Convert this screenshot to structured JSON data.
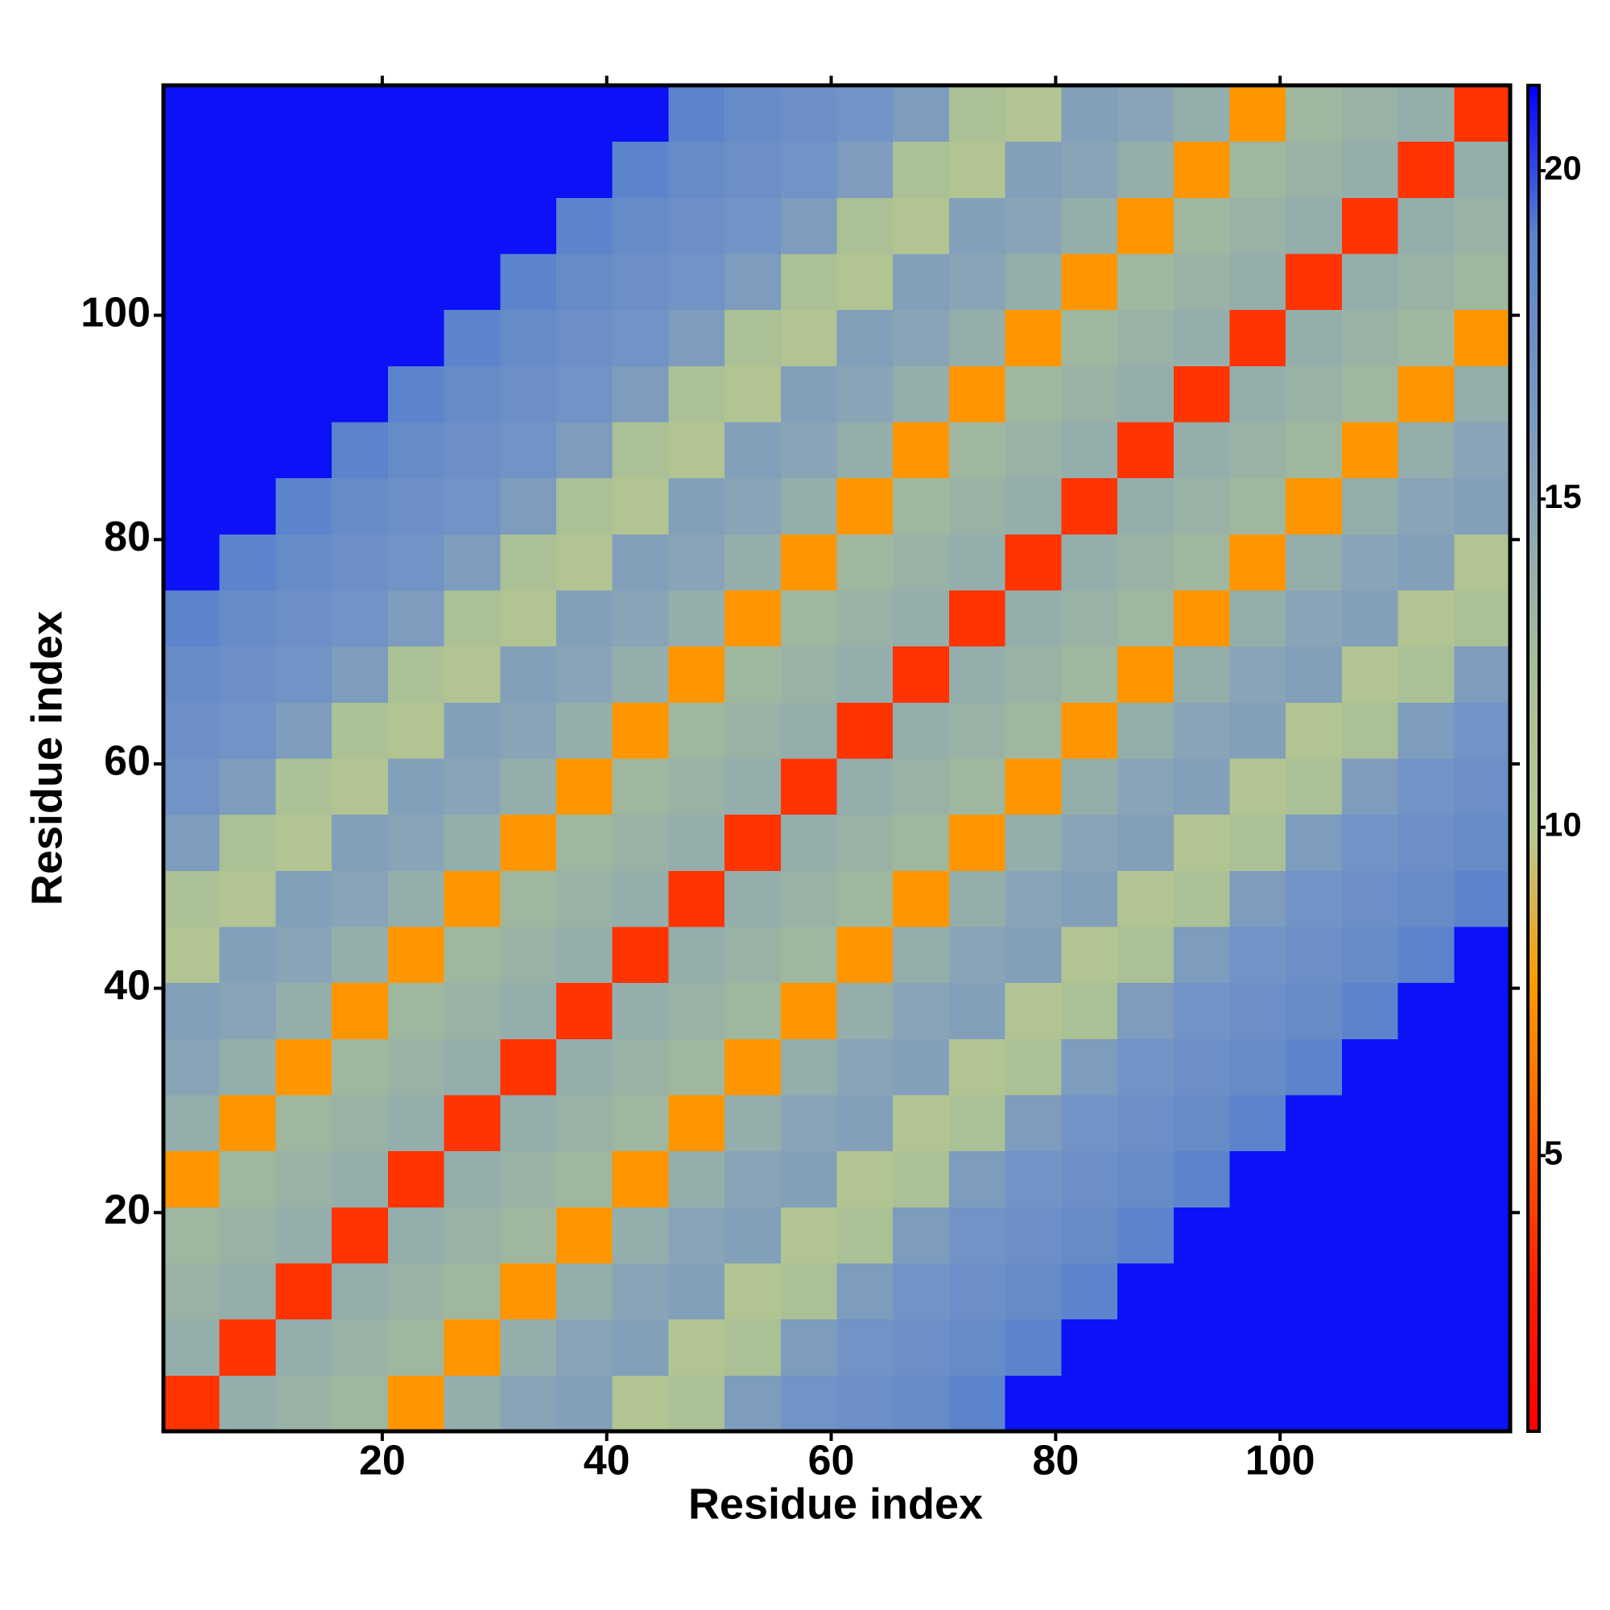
{
  "chart_data": {
    "type": "heatmap",
    "xlabel": "Residue index",
    "ylabel": "Residue index",
    "xlim": [
      0.5,
      120.5
    ],
    "ylim": [
      0.5,
      120.5
    ],
    "xticks": [
      20,
      40,
      60,
      80,
      100
    ],
    "yticks": [
      20,
      40,
      60,
      80,
      100
    ],
    "xbins": [
      0.5,
      5.5,
      10.5,
      15.5,
      20.5,
      25.5,
      30.5,
      35.5,
      40.5,
      45.5,
      50.5,
      55.5,
      60.5,
      65.5,
      70.5,
      75.5,
      80.5,
      85.5,
      90.5,
      95.5,
      100.5,
      105.5,
      110.5,
      115.5,
      120.5
    ],
    "ybins": [
      0.5,
      5.5,
      10.5,
      15.5,
      20.5,
      25.5,
      30.5,
      35.5,
      40.5,
      45.5,
      50.5,
      55.5,
      60.5,
      65.5,
      70.5,
      75.5,
      80.5,
      85.5,
      90.5,
      95.5,
      100.5,
      105.5,
      110.5,
      115.5,
      120.5
    ],
    "values": [
      [
        3.8,
        14,
        13.5,
        13,
        7.5,
        14,
        15,
        15.5,
        11,
        12,
        16,
        17,
        17.5,
        18,
        19,
        21,
        21,
        21,
        21,
        21,
        21,
        21,
        21,
        21
      ],
      [
        14,
        3.8,
        14,
        13.5,
        13,
        7.5,
        14,
        15,
        15.5,
        11,
        12,
        16,
        17,
        17.5,
        18,
        19,
        21,
        21,
        21,
        21,
        21,
        21,
        21,
        21
      ],
      [
        13.5,
        14,
        3.8,
        14,
        13.5,
        13,
        7.5,
        14,
        15,
        15.5,
        11,
        12,
        16,
        17,
        17.5,
        18,
        19,
        21,
        21,
        21,
        21,
        21,
        21,
        21
      ],
      [
        13,
        13.5,
        14,
        3.8,
        14,
        13.5,
        13,
        7.5,
        14,
        15,
        15.5,
        11,
        12,
        16,
        17,
        17.5,
        18,
        19,
        21,
        21,
        21,
        21,
        21,
        21
      ],
      [
        7.5,
        13,
        13.5,
        14,
        3.8,
        14,
        13.5,
        13,
        7.5,
        14,
        15,
        15.5,
        11,
        12,
        16,
        17,
        17.5,
        18,
        19,
        21,
        21,
        21,
        21,
        21
      ],
      [
        14,
        7.5,
        13,
        13.5,
        14,
        3.8,
        14,
        13.5,
        13,
        7.5,
        14,
        15,
        15.5,
        11,
        12,
        16,
        17,
        17.5,
        18,
        19,
        21,
        21,
        21,
        21
      ],
      [
        15,
        14,
        7.5,
        13,
        13.5,
        14,
        3.8,
        14,
        13.5,
        13,
        7.5,
        14,
        15,
        15.5,
        11,
        12,
        16,
        17,
        17.5,
        18,
        19,
        21,
        21,
        21
      ],
      [
        15.5,
        15,
        14,
        7.5,
        13,
        13.5,
        14,
        3.8,
        14,
        13.5,
        13,
        7.5,
        14,
        15,
        15.5,
        11,
        12,
        16,
        17,
        17.5,
        18,
        19,
        21,
        21
      ],
      [
        11,
        15.5,
        15,
        14,
        7.5,
        13,
        13.5,
        14,
        3.8,
        14,
        13.5,
        13,
        7.5,
        14,
        15,
        15.5,
        11,
        12,
        16,
        17,
        17.5,
        18,
        19,
        21
      ],
      [
        12,
        11,
        15.5,
        15,
        14,
        7.5,
        13,
        13.5,
        14,
        3.8,
        14,
        13.5,
        13,
        7.5,
        14,
        15,
        15.5,
        11,
        12,
        16,
        17,
        17.5,
        18,
        19
      ],
      [
        16,
        12,
        11,
        15.5,
        15,
        14,
        7.5,
        13,
        13.5,
        14,
        3.8,
        14,
        13.5,
        13,
        7.5,
        14,
        15,
        15.5,
        11,
        12,
        16,
        17,
        17.5,
        18
      ],
      [
        17,
        16,
        12,
        11,
        15.5,
        15,
        14,
        7.5,
        13,
        13.5,
        14,
        3.8,
        14,
        13.5,
        13,
        7.5,
        14,
        15,
        15.5,
        11,
        12,
        16,
        17,
        17.5
      ],
      [
        17.5,
        17,
        16,
        12,
        11,
        15.5,
        15,
        14,
        7.5,
        13,
        13.5,
        14,
        3.8,
        14,
        13.5,
        13,
        7.5,
        14,
        15,
        15.5,
        11,
        12,
        16,
        17
      ],
      [
        18,
        17.5,
        17,
        16,
        12,
        11,
        15.5,
        15,
        14,
        7.5,
        13,
        13.5,
        14,
        3.8,
        14,
        13.5,
        13,
        7.5,
        14,
        15,
        15.5,
        11,
        12,
        16
      ],
      [
        19,
        18,
        17.5,
        17,
        16,
        12,
        11,
        15.5,
        15,
        14,
        7.5,
        13,
        13.5,
        14,
        3.8,
        14,
        13.5,
        13,
        7.5,
        14,
        15,
        15.5,
        11,
        12
      ],
      [
        21,
        19,
        18,
        17.5,
        17,
        16,
        12,
        11,
        15.5,
        15,
        14,
        7.5,
        13,
        13.5,
        14,
        3.8,
        14,
        13.5,
        13,
        7.5,
        14,
        15,
        15.5,
        11
      ],
      [
        21,
        21,
        19,
        18,
        17.5,
        17,
        16,
        12,
        11,
        15.5,
        15,
        14,
        7.5,
        13,
        13.5,
        14,
        3.8,
        14,
        13.5,
        13,
        7.5,
        14,
        15,
        15.5
      ],
      [
        21,
        21,
        21,
        19,
        18,
        17.5,
        17,
        16,
        12,
        11,
        15.5,
        15,
        14,
        7.5,
        13,
        13.5,
        14,
        3.8,
        14,
        13.5,
        13,
        7.5,
        14,
        15
      ],
      [
        21,
        21,
        21,
        21,
        19,
        18,
        17.5,
        17,
        16,
        12,
        11,
        15.5,
        15,
        14,
        7.5,
        13,
        13.5,
        14,
        3.8,
        14,
        13.5,
        13,
        7.5,
        14
      ],
      [
        21,
        21,
        21,
        21,
        21,
        19,
        18,
        17.5,
        17,
        16,
        12,
        11,
        15.5,
        15,
        14,
        7.5,
        13,
        13.5,
        14,
        3.8,
        14,
        13.5,
        13,
        7.5
      ],
      [
        21,
        21,
        21,
        21,
        21,
        21,
        19,
        18,
        17.5,
        17,
        16,
        12,
        11,
        15.5,
        15,
        14,
        7.5,
        13,
        13.5,
        14,
        3.8,
        14,
        13.5,
        13
      ],
      [
        21,
        21,
        21,
        21,
        21,
        21,
        21,
        19,
        18,
        17.5,
        17,
        16,
        12,
        11,
        15.5,
        15,
        14,
        7.5,
        13,
        13.5,
        14,
        3.8,
        14,
        13.5
      ],
      [
        21,
        21,
        21,
        21,
        21,
        21,
        21,
        21,
        19,
        18,
        17.5,
        17,
        16,
        12,
        11,
        15.5,
        15,
        14,
        7.5,
        13,
        13.5,
        14,
        3.8,
        14
      ],
      [
        21,
        21,
        21,
        21,
        21,
        21,
        21,
        21,
        21,
        19,
        18,
        17.5,
        17,
        16,
        12,
        11,
        15.5,
        15,
        14,
        7.5,
        13,
        13.5,
        14,
        3.8
      ]
    ],
    "colors": [
      "#ff0000",
      "#ff2000",
      "#ff6000",
      "#ff9900",
      "#b8c890",
      "#a9bf95",
      "#8fa9b2",
      "#7495c4",
      "#5b84cc",
      "#0000ff"
    ],
    "colorbar": {
      "lim": [
        0.8,
        21.3
      ],
      "ticks": [
        5,
        10,
        15,
        20
      ]
    }
  }
}
